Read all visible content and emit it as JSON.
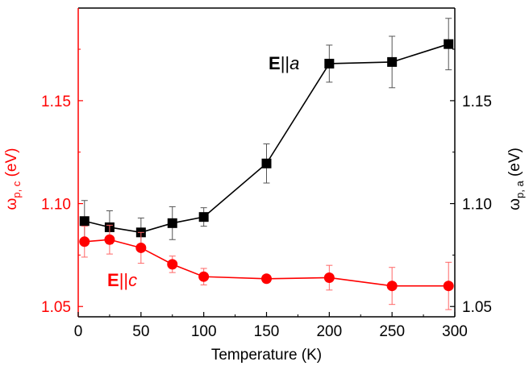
{
  "chart_data": {
    "type": "scatter",
    "title": "",
    "xlabel": "Temperature (K)",
    "xlim": [
      0,
      300
    ],
    "x_ticks": [
      0,
      50,
      100,
      150,
      200,
      250,
      300
    ],
    "grid": false,
    "axes": {
      "left": {
        "label_main": "ω",
        "label_sub": "p, c",
        "label_unit": " (eV)",
        "color": "#ff0000",
        "ylim": [
          1.045,
          1.195
        ],
        "ticks": [
          1.05,
          1.1,
          1.15
        ],
        "tick_labels": [
          "1.05",
          "1.10",
          "1.15"
        ]
      },
      "right": {
        "label_main": "ω",
        "label_sub": "p, a",
        "label_unit": " (eV)",
        "color": "#000000",
        "ylim": [
          1.045,
          1.195
        ],
        "ticks": [
          1.05,
          1.1,
          1.15
        ],
        "tick_labels": [
          "1.05",
          "1.10",
          "1.15"
        ]
      }
    },
    "series": [
      {
        "label_bold": "E",
        "label_sep": "||",
        "label_italic": "a",
        "color": "#000000",
        "marker": "square",
        "axis": "right",
        "x": [
          5,
          25,
          50,
          75,
          100,
          150,
          200,
          250,
          295
        ],
        "y": [
          1.0915,
          1.0885,
          1.086,
          1.0905,
          1.0935,
          1.1195,
          1.168,
          1.1688,
          1.1775
        ],
        "err": [
          0.01,
          0.008,
          0.007,
          0.008,
          0.0045,
          0.0095,
          0.009,
          0.0125,
          0.0125
        ]
      },
      {
        "label_bold": "E",
        "label_sep": "||",
        "label_italic": "c",
        "color": "#ff0000",
        "marker": "circle",
        "axis": "left",
        "x": [
          5,
          25,
          50,
          75,
          100,
          150,
          200,
          250,
          295
        ],
        "y": [
          1.0815,
          1.0825,
          1.0785,
          1.0705,
          1.0645,
          1.0635,
          1.064,
          1.06,
          1.06
        ],
        "err": [
          0.0075,
          0.007,
          0.0075,
          0.004,
          0.004,
          0.001,
          0.006,
          0.009,
          0.0115
        ]
      }
    ]
  }
}
